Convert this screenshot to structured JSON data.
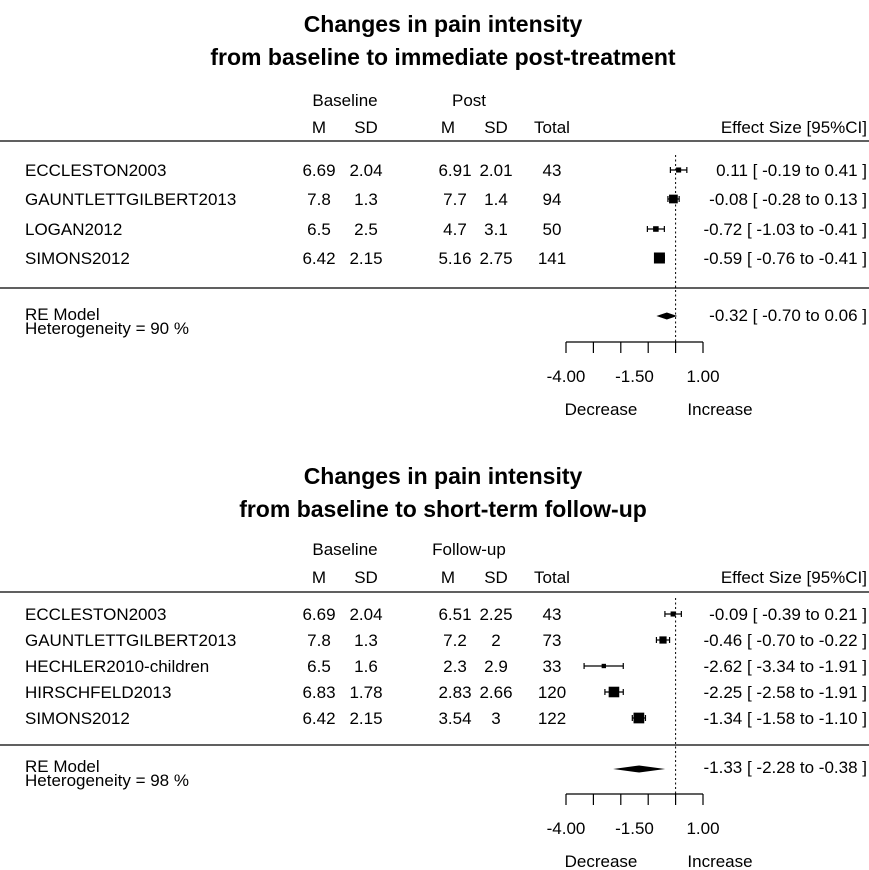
{
  "chart_data": [
    {
      "type": "forest",
      "title": [
        "Changes in pain intensity",
        "from baseline to immediate post-treatment"
      ],
      "group_headers": {
        "baseline": "Baseline",
        "second": "Post"
      },
      "col_headers": {
        "m1": "M",
        "sd1": "SD",
        "m2": "M",
        "sd2": "SD",
        "total": "Total",
        "es": "Effect Size [95%CI]"
      },
      "studies": [
        {
          "name": "ECCLESTON2003",
          "m1": "6.69",
          "sd1": "2.04",
          "m2": "6.91",
          "sd2": "2.01",
          "total": "43",
          "es": 0.11,
          "lo": -0.19,
          "hi": 0.41,
          "es_text": "0.11 [ -0.19 to 0.41 ]"
        },
        {
          "name": "GAUNTLETTGILBERT2013",
          "m1": "7.8",
          "sd1": "1.3",
          "m2": "7.7",
          "sd2": "1.4",
          "total": "94",
          "es": -0.08,
          "lo": -0.28,
          "hi": 0.13,
          "es_text": "-0.08 [ -0.28 to 0.13 ]"
        },
        {
          "name": "LOGAN2012",
          "m1": "6.5",
          "sd1": "2.5",
          "m2": "4.7",
          "sd2": "3.1",
          "total": "50",
          "es": -0.72,
          "lo": -1.03,
          "hi": -0.41,
          "es_text": "-0.72 [ -1.03 to -0.41 ]"
        },
        {
          "name": "SIMONS2012",
          "m1": "6.42",
          "sd1": "2.15",
          "m2": "5.16",
          "sd2": "2.75",
          "total": "141",
          "es": -0.59,
          "lo": -0.76,
          "hi": -0.41,
          "es_text": "-0.59 [ -0.76 to -0.41 ]"
        }
      ],
      "model": {
        "label": "RE Model",
        "heterogeneity": "Heterogeneity =  90 %",
        "es": -0.32,
        "lo": -0.7,
        "hi": 0.06,
        "es_text": "-0.32 [ -0.70 to 0.06 ]"
      },
      "x_ticks": [
        -4.0,
        -3.0,
        -2.0,
        -1.0,
        0.0,
        1.0
      ],
      "tick_labels": [
        {
          "value": -4.0,
          "text": "-4.00"
        },
        {
          "value": -1.5,
          "text": "-1.50"
        },
        {
          "value": 1.0,
          "text": "1.00"
        }
      ],
      "xlim": [
        -4.0,
        1.0
      ],
      "ref_line": 0,
      "direction_labels": [
        "Decrease",
        "Increase"
      ]
    },
    {
      "type": "forest",
      "title": [
        "Changes in pain intensity",
        "from baseline to short-term follow-up"
      ],
      "group_headers": {
        "baseline": "Baseline",
        "second": "Follow-up"
      },
      "col_headers": {
        "m1": "M",
        "sd1": "SD",
        "m2": "M",
        "sd2": "SD",
        "total": "Total",
        "es": "Effect Size [95%CI]"
      },
      "studies": [
        {
          "name": "ECCLESTON2003",
          "m1": "6.69",
          "sd1": "2.04",
          "m2": "6.51",
          "sd2": "2.25",
          "total": "43",
          "es": -0.09,
          "lo": -0.39,
          "hi": 0.21,
          "es_text": "-0.09 [ -0.39 to 0.21 ]"
        },
        {
          "name": "GAUNTLETTGILBERT2013",
          "m1": "7.8",
          "sd1": "1.3",
          "m2": "7.2",
          "sd2": "2",
          "total": "73",
          "es": -0.46,
          "lo": -0.7,
          "hi": -0.22,
          "es_text": "-0.46 [ -0.70 to -0.22 ]"
        },
        {
          "name": "HECHLER2010-children",
          "m1": "6.5",
          "sd1": "1.6",
          "m2": "2.3",
          "sd2": "2.9",
          "total": "33",
          "es": -2.62,
          "lo": -3.34,
          "hi": -1.91,
          "es_text": "-2.62 [ -3.34 to -1.91 ]"
        },
        {
          "name": "HIRSCHFELD2013",
          "m1": "6.83",
          "sd1": "1.78",
          "m2": "2.83",
          "sd2": "2.66",
          "total": "120",
          "es": -2.25,
          "lo": -2.58,
          "hi": -1.91,
          "es_text": "-2.25 [ -2.58 to -1.91 ]"
        },
        {
          "name": "SIMONS2012",
          "m1": "6.42",
          "sd1": "2.15",
          "m2": "3.54",
          "sd2": "3",
          "total": "122",
          "es": -1.34,
          "lo": -1.58,
          "hi": -1.1,
          "es_text": "-1.34 [ -1.58 to -1.10 ]"
        }
      ],
      "model": {
        "label": "RE Model",
        "heterogeneity": "Heterogeneity =  98 %",
        "es": -1.33,
        "lo": -2.28,
        "hi": -0.38,
        "es_text": "-1.33 [ -2.28 to -0.38 ]"
      },
      "x_ticks": [
        -4.0,
        -3.0,
        -2.0,
        -1.0,
        0.0,
        1.0
      ],
      "tick_labels": [
        {
          "value": -4.0,
          "text": "-4.00"
        },
        {
          "value": -1.5,
          "text": "-1.50"
        },
        {
          "value": 1.0,
          "text": "1.00"
        }
      ],
      "xlim": [
        -4.0,
        1.0
      ],
      "ref_line": 0,
      "direction_labels": [
        "Decrease",
        "Increase"
      ]
    }
  ]
}
